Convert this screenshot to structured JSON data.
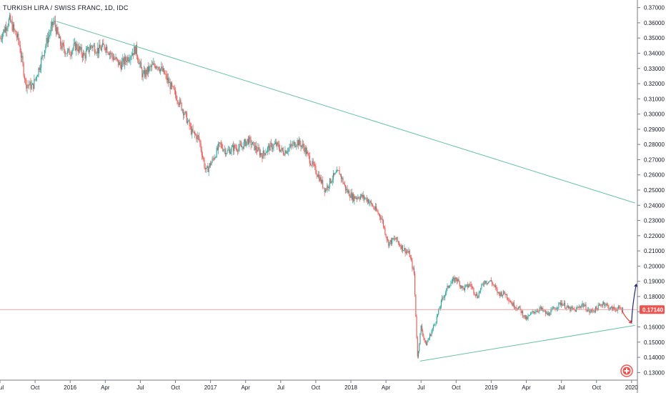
{
  "chart_data": {
    "type": "candlestick",
    "title": "TURKISH LIRA / SWISS FRANC, 1D, IDC",
    "ylim": [
      0.125,
      0.375
    ],
    "y_ticks": [
      "0.37000",
      "0.36000",
      "0.35000",
      "0.34000",
      "0.33000",
      "0.32000",
      "0.31000",
      "0.30000",
      "0.29000",
      "0.28000",
      "0.27000",
      "0.26000",
      "0.25000",
      "0.24000",
      "0.23000",
      "0.22000",
      "0.21000",
      "0.20000",
      "0.19000",
      "0.18000",
      "0.17000",
      "0.16000",
      "0.15000",
      "0.14000",
      "0.13000"
    ],
    "x_ticks": [
      "Jul",
      "Oct",
      "2016",
      "Apr",
      "Jul",
      "Oct",
      "2017",
      "Apr",
      "Jul",
      "Oct",
      "2018",
      "Apr",
      "Jul",
      "Oct",
      "2019",
      "Apr",
      "Jul",
      "Oct",
      "2020"
    ],
    "x_tick_months": [
      0,
      3,
      6,
      9,
      12,
      15,
      18,
      21,
      24,
      27,
      30,
      33,
      36,
      39,
      42,
      45,
      48,
      51,
      54
    ],
    "x_range_months": [
      0,
      54.5
    ],
    "price_path": [
      [
        0.0,
        0.35
      ],
      [
        0.8,
        0.362
      ],
      [
        1.6,
        0.348
      ],
      [
        2.2,
        0.32
      ],
      [
        2.8,
        0.318
      ],
      [
        3.4,
        0.332
      ],
      [
        4.0,
        0.348
      ],
      [
        4.6,
        0.361
      ],
      [
        5.2,
        0.345
      ],
      [
        5.8,
        0.34
      ],
      [
        6.5,
        0.345
      ],
      [
        7.2,
        0.338
      ],
      [
        7.8,
        0.345
      ],
      [
        8.4,
        0.342
      ],
      [
        9.0,
        0.345
      ],
      [
        9.6,
        0.338
      ],
      [
        10.3,
        0.332
      ],
      [
        11.0,
        0.338
      ],
      [
        11.6,
        0.343
      ],
      [
        12.2,
        0.325
      ],
      [
        12.8,
        0.33
      ],
      [
        13.4,
        0.333
      ],
      [
        14.0,
        0.327
      ],
      [
        14.6,
        0.318
      ],
      [
        15.2,
        0.31
      ],
      [
        15.8,
        0.3
      ],
      [
        16.4,
        0.288
      ],
      [
        17.0,
        0.284
      ],
      [
        17.6,
        0.262
      ],
      [
        18.2,
        0.27
      ],
      [
        18.8,
        0.28
      ],
      [
        19.4,
        0.275
      ],
      [
        20.0,
        0.278
      ],
      [
        20.6,
        0.278
      ],
      [
        21.2,
        0.283
      ],
      [
        21.8,
        0.278
      ],
      [
        22.4,
        0.273
      ],
      [
        23.0,
        0.278
      ],
      [
        23.6,
        0.28
      ],
      [
        24.2,
        0.275
      ],
      [
        24.8,
        0.278
      ],
      [
        25.4,
        0.282
      ],
      [
        26.0,
        0.278
      ],
      [
        26.6,
        0.268
      ],
      [
        27.2,
        0.26
      ],
      [
        27.8,
        0.25
      ],
      [
        28.4,
        0.258
      ],
      [
        29.0,
        0.262
      ],
      [
        29.6,
        0.25
      ],
      [
        30.2,
        0.245
      ],
      [
        30.8,
        0.246
      ],
      [
        31.4,
        0.244
      ],
      [
        32.0,
        0.238
      ],
      [
        32.6,
        0.232
      ],
      [
        33.2,
        0.215
      ],
      [
        33.8,
        0.218
      ],
      [
        34.4,
        0.212
      ],
      [
        35.0,
        0.208
      ],
      [
        35.4,
        0.195
      ],
      [
        35.7,
        0.14
      ],
      [
        36.0,
        0.16
      ],
      [
        36.4,
        0.148
      ],
      [
        36.8,
        0.155
      ],
      [
        37.3,
        0.165
      ],
      [
        37.8,
        0.178
      ],
      [
        38.4,
        0.188
      ],
      [
        39.0,
        0.192
      ],
      [
        39.6,
        0.185
      ],
      [
        40.2,
        0.188
      ],
      [
        40.8,
        0.18
      ],
      [
        41.4,
        0.19
      ],
      [
        42.0,
        0.19
      ],
      [
        42.6,
        0.182
      ],
      [
        43.2,
        0.182
      ],
      [
        43.8,
        0.175
      ],
      [
        44.4,
        0.172
      ],
      [
        45.0,
        0.165
      ],
      [
        45.6,
        0.17
      ],
      [
        46.2,
        0.172
      ],
      [
        46.8,
        0.168
      ],
      [
        47.4,
        0.172
      ],
      [
        48.0,
        0.176
      ],
      [
        48.6,
        0.172
      ],
      [
        49.2,
        0.171
      ],
      [
        49.8,
        0.175
      ],
      [
        50.4,
        0.17
      ],
      [
        51.0,
        0.172
      ],
      [
        51.6,
        0.176
      ],
      [
        52.2,
        0.172
      ],
      [
        52.8,
        0.172
      ],
      [
        53.3,
        0.1714
      ]
    ],
    "current_price": "0.17140",
    "last_value": 0.1714,
    "horizontal_line_value": 0.1714,
    "trendlines": [
      {
        "from": [
          4.8,
          0.361
        ],
        "to": [
          54.3,
          0.2415
        ]
      },
      {
        "from": [
          35.9,
          0.1375
        ],
        "to": [
          54.3,
          0.161
        ]
      }
    ],
    "annotations": [
      {
        "type": "arrow-down",
        "from": [
          53.2,
          0.1705
        ],
        "to": [
          54.0,
          0.1625
        ],
        "color": "#e53935"
      },
      {
        "type": "arrow-up",
        "from": [
          54.0,
          0.163
        ],
        "to": [
          54.4,
          0.188
        ],
        "color": "#1a237e"
      }
    ],
    "colors": {
      "up": "#26a69a",
      "down": "#ef5350",
      "trendline": "#66c2a5",
      "price_line": "#f28b8b",
      "price_badge": "#ef5350",
      "axis": "#787b86"
    }
  }
}
